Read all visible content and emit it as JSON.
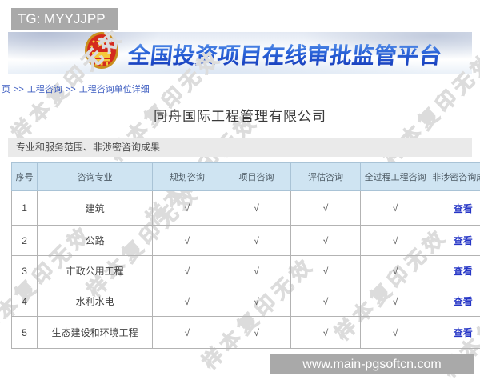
{
  "overlay": {
    "tg_badge": "TG: MYYJJPP",
    "site_url": "www.main-pgsoftcn.com",
    "badge_color": "#a9a9a9"
  },
  "watermark": {
    "text": "样本复印无效"
  },
  "banner": {
    "title": "全国投资项目在线审批监管平台",
    "emblem_icon": "china-national-emblem",
    "title_color": "#2149c8"
  },
  "breadcrumb": {
    "items": [
      "页",
      "工程咨询",
      "工程咨询单位详细"
    ],
    "separator": ">>"
  },
  "page": {
    "company_name": "同舟国际工程管理有限公司",
    "section_title": "专业和服务范围、非涉密咨询成果"
  },
  "table": {
    "headers": [
      "序号",
      "咨询专业",
      "规划咨询",
      "项目咨询",
      "评估咨询",
      "全过程工程咨询",
      "非涉密咨询成果"
    ],
    "check_mark": "√",
    "view_label": "查看",
    "header_bg": "#cfe4f2",
    "link_color": "#2636c6",
    "rows": [
      {
        "index": "1",
        "specialty": "建筑",
        "planning": true,
        "project": true,
        "evaluation": true,
        "whole_process": true
      },
      {
        "index": "2",
        "specialty": "公路",
        "planning": true,
        "project": true,
        "evaluation": true,
        "whole_process": true
      },
      {
        "index": "3",
        "specialty": "市政公用工程",
        "planning": true,
        "project": true,
        "evaluation": true,
        "whole_process": true
      },
      {
        "index": "4",
        "specialty": "水利水电",
        "planning": true,
        "project": true,
        "evaluation": true,
        "whole_process": true
      },
      {
        "index": "5",
        "specialty": "生态建设和环境工程",
        "planning": true,
        "project": true,
        "evaluation": true,
        "whole_process": true
      }
    ]
  }
}
